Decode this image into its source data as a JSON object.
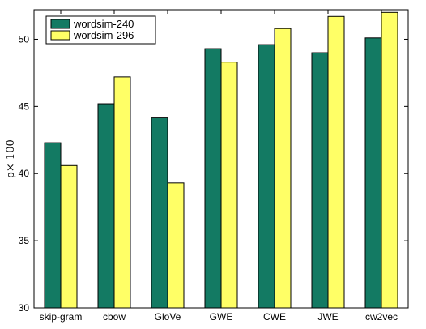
{
  "chart_data": {
    "type": "bar",
    "categories": [
      "skip-gram",
      "cbow",
      "GloVe",
      "GWE",
      "CWE",
      "JWE",
      "cw2vec"
    ],
    "series": [
      {
        "name": "wordsim-240",
        "color": "#137a63",
        "values": [
          42.3,
          45.2,
          44.2,
          49.3,
          49.6,
          49.0,
          50.1
        ]
      },
      {
        "name": "wordsim-296",
        "color": "#ffff66",
        "values": [
          40.6,
          47.2,
          39.3,
          48.3,
          50.8,
          51.7,
          52.0
        ]
      }
    ],
    "xlabel": "",
    "ylabel": "ρ× 100",
    "ylim": [
      30,
      52.2
    ],
    "yticks": [
      30,
      35,
      40,
      45,
      50
    ],
    "legend_position": "top-left",
    "grid": false
  }
}
